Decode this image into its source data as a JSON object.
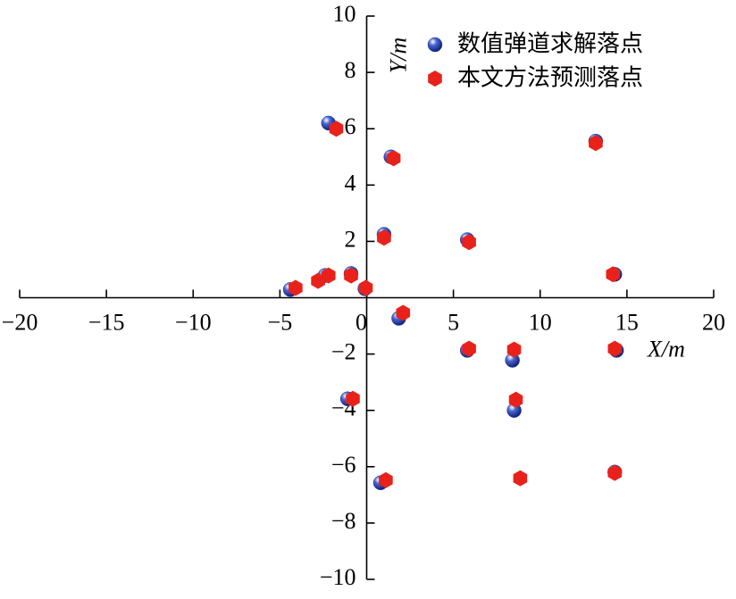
{
  "chart_data": {
    "type": "scatter",
    "x_label": "X/m",
    "y_label": "Y/m",
    "xlim": [
      -20,
      20
    ],
    "ylim": [
      -10,
      10
    ],
    "xticks": [
      {
        "value": -20,
        "label": "−20"
      },
      {
        "value": -15,
        "label": "−15"
      },
      {
        "value": -10,
        "label": "−10"
      },
      {
        "value": -5,
        "label": "−5"
      },
      0,
      5,
      10,
      15,
      20
    ],
    "yticks": [
      {
        "value": -10,
        "label": "−10"
      },
      {
        "value": -8,
        "label": "−8"
      },
      {
        "value": -6,
        "label": "−6"
      },
      {
        "value": -4,
        "label": "−4"
      },
      {
        "value": -2,
        "label": "−2"
      },
      2,
      4,
      6,
      8,
      10
    ],
    "series": [
      {
        "name": "数值弹道求解落点",
        "color": "#1f3aa0",
        "marker": "sphere",
        "x": [
          -2.2,
          1.4,
          13.2,
          1.0,
          5.8,
          14.3,
          -0.9,
          -2.4,
          -4.4,
          -0.1,
          1.85,
          5.8,
          8.4,
          14.4,
          -1.1,
          8.5,
          14.3,
          0.8
        ],
        "y": [
          6.2,
          5.0,
          5.56,
          2.25,
          2.06,
          0.83,
          0.86,
          0.79,
          0.29,
          0.32,
          -0.73,
          -1.87,
          -2.22,
          -1.87,
          -3.59,
          -4.0,
          -6.19,
          -6.57
        ]
      },
      {
        "name": "本文方法预测落点",
        "color": "#e8221b",
        "marker": "hexagon",
        "x": [
          -1.75,
          1.55,
          13.2,
          1.0,
          5.9,
          14.2,
          -0.9,
          -2.2,
          -2.8,
          -4.1,
          -0.05,
          2.1,
          5.9,
          8.5,
          14.3,
          -0.8,
          8.6,
          8.85,
          1.1,
          14.3
        ],
        "y": [
          6.0,
          4.95,
          5.49,
          2.13,
          1.97,
          0.83,
          0.79,
          0.79,
          0.6,
          0.35,
          0.35,
          -0.54,
          -1.81,
          -1.84,
          -1.81,
          -3.59,
          -3.62,
          -6.41,
          -6.48,
          -6.22
        ]
      }
    ]
  }
}
